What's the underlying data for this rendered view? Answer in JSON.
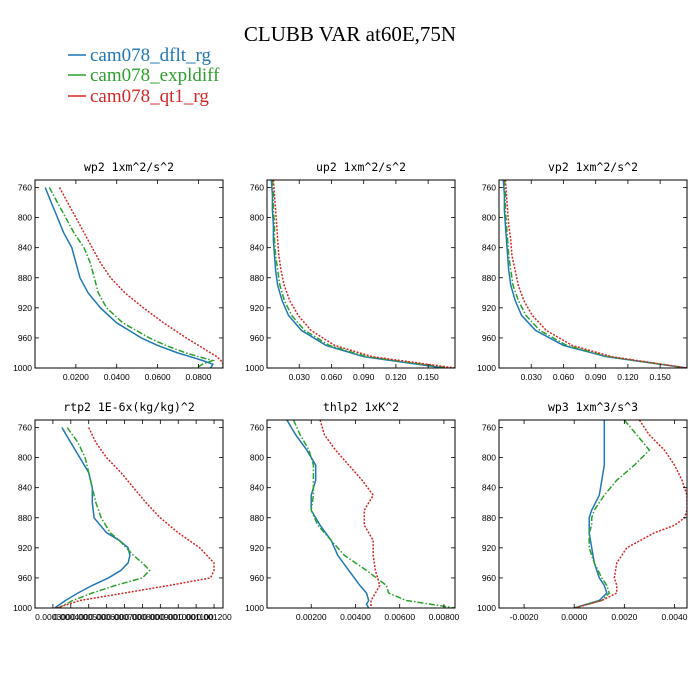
{
  "figure": {
    "title": "CLUBB VAR at60E,75N"
  },
  "legend": [
    {
      "name": "cam078_dflt_rg",
      "color": "#1f77b4",
      "style": "solid"
    },
    {
      "name": "cam078_expldiff",
      "color": "#2ca02c",
      "style": "dashdot"
    },
    {
      "name": "cam078_qt1_rg",
      "color": "#d62728",
      "style": "dotted"
    }
  ],
  "chart_data": [
    {
      "type": "line",
      "title": "wp2  1xm^2/s^2",
      "ylim": [
        1000,
        750
      ],
      "yticks": [
        760,
        800,
        840,
        880,
        920,
        960,
        1000
      ],
      "xlim": [
        0.0,
        0.092
      ],
      "xticks": [
        0.02,
        0.04,
        0.06,
        0.08
      ],
      "xtick_labels": [
        "0.0200",
        "0.0400",
        "0.0600",
        "0.0800"
      ],
      "y": [
        760,
        780,
        800,
        820,
        840,
        860,
        880,
        900,
        920,
        940,
        960,
        970,
        980,
        985,
        990,
        995,
        1000
      ],
      "series": [
        {
          "name": "cam078_dflt_rg",
          "values": [
            0.005,
            0.008,
            0.011,
            0.014,
            0.018,
            0.02,
            0.022,
            0.026,
            0.032,
            0.04,
            0.052,
            0.06,
            0.07,
            0.076,
            0.082,
            0.087,
            0.086
          ]
        },
        {
          "name": "cam078_expldiff",
          "values": [
            0.007,
            0.011,
            0.015,
            0.019,
            0.024,
            0.027,
            0.029,
            0.031,
            0.035,
            0.043,
            0.056,
            0.064,
            0.074,
            0.08,
            0.087,
            0.082,
            0.079
          ]
        },
        {
          "name": "cam078_qt1_rg",
          "values": [
            0.012,
            0.016,
            0.02,
            0.024,
            0.028,
            0.032,
            0.037,
            0.044,
            0.053,
            0.063,
            0.074,
            0.08,
            0.086,
            0.089,
            0.091,
            0.092,
            0.092
          ]
        }
      ]
    },
    {
      "type": "line",
      "title": "up2  1xm^2/s^2",
      "ylim": [
        1000,
        750
      ],
      "yticks": [
        760,
        800,
        840,
        880,
        920,
        960,
        1000
      ],
      "xlim": [
        0.0,
        0.175
      ],
      "xticks": [
        0.03,
        0.06,
        0.09,
        0.12,
        0.15
      ],
      "xtick_labels": [
        "0.030",
        "0.060",
        "0.090",
        "0.120",
        "0.150"
      ],
      "y": [
        750,
        770,
        790,
        810,
        830,
        850,
        870,
        890,
        910,
        930,
        950,
        970,
        985,
        1000
      ],
      "series": [
        {
          "name": "cam078_dflt_rg",
          "values": [
            0.004,
            0.005,
            0.005,
            0.006,
            0.006,
            0.007,
            0.008,
            0.01,
            0.014,
            0.02,
            0.032,
            0.055,
            0.09,
            0.165
          ]
        },
        {
          "name": "cam078_expldiff",
          "values": [
            0.005,
            0.006,
            0.006,
            0.007,
            0.007,
            0.008,
            0.01,
            0.012,
            0.016,
            0.023,
            0.035,
            0.058,
            0.093,
            0.17
          ]
        },
        {
          "name": "cam078_qt1_rg",
          "values": [
            0.006,
            0.007,
            0.008,
            0.009,
            0.01,
            0.011,
            0.013,
            0.016,
            0.021,
            0.029,
            0.041,
            0.063,
            0.098,
            0.175
          ]
        }
      ]
    },
    {
      "type": "line",
      "title": "vp2  1xm^2/s^2",
      "ylim": [
        1000,
        750
      ],
      "yticks": [
        760,
        800,
        840,
        880,
        920,
        960,
        1000
      ],
      "xlim": [
        0.0,
        0.175
      ],
      "xticks": [
        0.03,
        0.06,
        0.09,
        0.12,
        0.15
      ],
      "xtick_labels": [
        "0.030",
        "0.060",
        "0.090",
        "0.120",
        "0.150"
      ],
      "y": [
        750,
        770,
        790,
        810,
        830,
        850,
        870,
        890,
        910,
        930,
        950,
        970,
        985,
        1000
      ],
      "series": [
        {
          "name": "cam078_dflt_rg",
          "values": [
            0.004,
            0.005,
            0.005,
            0.006,
            0.007,
            0.008,
            0.009,
            0.011,
            0.015,
            0.021,
            0.034,
            0.06,
            0.1,
            0.175
          ]
        },
        {
          "name": "cam078_expldiff",
          "values": [
            0.005,
            0.006,
            0.006,
            0.007,
            0.008,
            0.009,
            0.011,
            0.013,
            0.018,
            0.025,
            0.038,
            0.063,
            0.102,
            0.175
          ]
        },
        {
          "name": "cam078_qt1_rg",
          "values": [
            0.006,
            0.007,
            0.008,
            0.009,
            0.011,
            0.012,
            0.015,
            0.018,
            0.023,
            0.031,
            0.044,
            0.068,
            0.105,
            0.175
          ]
        }
      ]
    },
    {
      "type": "line",
      "title": "rtp2  1E-6x(kg/kg)^2",
      "ylim": [
        1000,
        750
      ],
      "yticks": [
        760,
        800,
        840,
        880,
        920,
        960,
        1000
      ],
      "xlim": [
        0.0002,
        0.00125
      ],
      "xticks": [
        0.0003,
        0.0004,
        0.0005,
        0.0006,
        0.0007,
        0.0008,
        0.0009,
        0.001,
        0.0011,
        0.0012
      ],
      "xtick_labels": [
        "0.000300",
        "0.000400",
        "0.000500",
        "0.000600",
        "0.000700",
        "0.000800",
        "0.000900",
        "0.001000",
        "0.001100",
        "0.001200"
      ],
      "y": [
        760,
        780,
        800,
        820,
        840,
        860,
        880,
        900,
        910,
        920,
        930,
        940,
        950,
        960,
        970,
        980,
        990,
        1000
      ],
      "series": [
        {
          "name": "cam078_dflt_rg",
          "values": [
            0.00035,
            0.0004,
            0.00045,
            0.0005,
            0.00052,
            0.00052,
            0.00053,
            0.0006,
            0.00067,
            0.00072,
            0.00073,
            0.00072,
            0.00068,
            0.00061,
            0.00052,
            0.00044,
            0.00037,
            0.00031
          ]
        },
        {
          "name": "cam078_expldiff",
          "values": [
            0.00038,
            0.00044,
            0.00048,
            0.0005,
            0.00052,
            0.00054,
            0.00057,
            0.00062,
            0.00067,
            0.00071,
            0.00075,
            0.0008,
            0.00084,
            0.0008,
            0.00065,
            0.00052,
            0.00041,
            0.00033
          ]
        },
        {
          "name": "cam078_qt1_rg",
          "values": [
            0.0005,
            0.00054,
            0.0006,
            0.00068,
            0.00075,
            0.00082,
            0.0009,
            0.001,
            0.00106,
            0.00112,
            0.00116,
            0.0012,
            0.0012,
            0.00118,
            0.00095,
            0.0007,
            0.00045,
            0.00032
          ]
        }
      ]
    },
    {
      "type": "line",
      "title": "thlp2  1xK^2",
      "ylim": [
        1000,
        750
      ],
      "yticks": [
        760,
        800,
        840,
        880,
        920,
        960,
        1000
      ],
      "xlim": [
        0.0,
        0.0085
      ],
      "xticks": [
        0.002,
        0.004,
        0.006,
        0.008
      ],
      "xtick_labels": [
        "0.00200",
        "0.00400",
        "0.00600",
        "0.00800"
      ],
      "y": [
        750,
        770,
        790,
        810,
        830,
        850,
        870,
        890,
        910,
        930,
        950,
        970,
        980,
        990,
        995,
        1000
      ],
      "series": [
        {
          "name": "cam078_dflt_rg",
          "values": [
            0.0009,
            0.0013,
            0.0018,
            0.0022,
            0.0022,
            0.002,
            0.002,
            0.0024,
            0.0029,
            0.0032,
            0.0037,
            0.0042,
            0.0045,
            0.0046,
            0.0045,
            0.0046
          ]
        },
        {
          "name": "cam078_expldiff",
          "values": [
            0.0012,
            0.0015,
            0.0019,
            0.0021,
            0.0021,
            0.0021,
            0.002,
            0.0023,
            0.0029,
            0.0035,
            0.0045,
            0.0054,
            0.0055,
            0.0063,
            0.0074,
            0.0085
          ]
        },
        {
          "name": "cam078_qt1_rg",
          "values": [
            0.0024,
            0.0026,
            0.0031,
            0.0037,
            0.0043,
            0.0048,
            0.0044,
            0.0044,
            0.0048,
            0.0048,
            0.0049,
            0.0051,
            0.0049,
            0.0047,
            0.0047,
            0.0047
          ]
        }
      ]
    },
    {
      "type": "line",
      "title": "wp3  1xm^3/s^3",
      "ylim": [
        1000,
        750
      ],
      "yticks": [
        760,
        800,
        840,
        880,
        920,
        960,
        1000
      ],
      "xlim": [
        -0.003,
        0.0045
      ],
      "xticks": [
        -0.002,
        0.0,
        0.002,
        0.004
      ],
      "xtick_labels": [
        "-0.0020",
        "0.0000",
        "0.0020",
        "0.0040"
      ],
      "y": [
        750,
        770,
        790,
        810,
        830,
        850,
        870,
        880,
        890,
        900,
        920,
        940,
        960,
        970,
        980,
        990,
        1000
      ],
      "series": [
        {
          "name": "cam078_dflt_rg",
          "values": [
            0.0012,
            0.0012,
            0.0012,
            0.0012,
            0.0011,
            0.001,
            0.0007,
            0.0006,
            0.0006,
            0.0006,
            0.0007,
            0.0008,
            0.001,
            0.0012,
            0.0013,
            0.001,
            0.0
          ]
        },
        {
          "name": "cam078_expldiff",
          "values": [
            0.002,
            0.0025,
            0.003,
            0.0024,
            0.0017,
            0.0012,
            0.0008,
            0.0007,
            0.0007,
            0.0006,
            0.0006,
            0.0008,
            0.0011,
            0.0013,
            0.0014,
            0.0011,
            0.0
          ]
        },
        {
          "name": "cam078_qt1_rg",
          "values": [
            0.0026,
            0.003,
            0.0036,
            0.004,
            0.0043,
            0.0045,
            0.0045,
            0.0044,
            0.004,
            0.0032,
            0.0021,
            0.0017,
            0.0016,
            0.0017,
            0.0017,
            0.0011,
            0.0
          ]
        }
      ]
    }
  ]
}
